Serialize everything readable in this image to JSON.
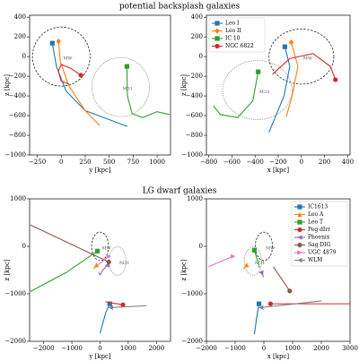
{
  "figure_titles": [
    "potential backsplash galaxies",
    "LG dwarf galaxies"
  ],
  "chart_data": [
    {
      "type": "line",
      "xlabel": "y [kpc]",
      "ylabel": "z [kpc]",
      "xlim": [
        -330,
        1140
      ],
      "ylim": [
        -1000,
        420
      ],
      "xticks": [
        {
          "value": -250,
          "label": "−250"
        },
        0,
        250,
        500,
        750,
        1000
      ],
      "yticks": [
        {
          "value": -1000,
          "label": "−1000"
        },
        {
          "value": -800,
          "label": "−800"
        },
        {
          "value": -600,
          "label": "−600"
        },
        {
          "value": -400,
          "label": "−400"
        },
        {
          "value": -200,
          "label": "−200"
        },
        0,
        200,
        400
      ],
      "circles": [
        {
          "label": "MW",
          "x": 0,
          "y": 0,
          "r": 300
        },
        {
          "label": "M31",
          "x": 620,
          "y": -310,
          "r": 300
        }
      ],
      "series": [
        {
          "name": "Leo I",
          "color": "#1f77b4",
          "marker": "s",
          "x": [
            -93,
            -50,
            50,
            250,
            690
          ],
          "values": [
            136,
            -100,
            -350,
            -550,
            -710
          ]
        },
        {
          "name": "Leo II",
          "color": "#ff7f0e",
          "marker": "D",
          "x": [
            -28,
            -10,
            80,
            250,
            400
          ],
          "values": [
            155,
            -50,
            -300,
            -550,
            -700
          ]
        },
        {
          "name": "IC 10",
          "color": "#2ca02c",
          "marker": "s",
          "x": [
            685,
            690,
            740,
            850,
            1000,
            1130
          ],
          "values": [
            -100,
            -400,
            -580,
            -620,
            -560,
            -590
          ]
        },
        {
          "name": "NGC 6822",
          "color": "#d62728",
          "marker": "o",
          "x": [
            205,
            100,
            0,
            -30,
            0,
            80
          ],
          "values": [
            -190,
            -120,
            -80,
            -150,
            -250,
            -280
          ]
        }
      ]
    },
    {
      "type": "line",
      "xlabel": "x [kpc]",
      "ylabel": "z [kpc]",
      "xlim": [
        -820,
        420
      ],
      "ylim": [
        -1000,
        420
      ],
      "xticks": [
        {
          "value": -800,
          "label": "−800"
        },
        {
          "value": -600,
          "label": "−600"
        },
        {
          "value": -400,
          "label": "−400"
        },
        {
          "value": -200,
          "label": "−200"
        },
        0,
        200,
        400
      ],
      "yticks": [
        {
          "value": -1000,
          "label": "−1000"
        },
        {
          "value": -800,
          "label": "−800"
        },
        {
          "value": -600,
          "label": "−600"
        },
        {
          "value": -400,
          "label": "−400"
        },
        {
          "value": -200,
          "label": "−200"
        },
        0,
        200,
        400
      ],
      "legend": "upper left",
      "circles": [
        {
          "label": "MW",
          "x": 0,
          "y": 0,
          "r": 280
        },
        {
          "label": "M33",
          "x": -380,
          "y": -340,
          "r": 300
        }
      ],
      "series": [
        {
          "name": "Leo I",
          "color": "#1f77b4",
          "marker": "s",
          "x": [
            -143,
            -100,
            -150,
            -280
          ],
          "values": [
            100,
            -100,
            -400,
            -770
          ]
        },
        {
          "name": "Leo II",
          "color": "#ff7f0e",
          "marker": "D",
          "x": [
            -87,
            -30,
            -80,
            -130
          ],
          "values": [
            145,
            -100,
            -400,
            -610
          ]
        },
        {
          "name": "IC 10",
          "color": "#2ca02c",
          "marker": "s",
          "x": [
            -373,
            -420,
            -550,
            -700,
            -760
          ],
          "values": [
            -155,
            -450,
            -620,
            -590,
            -500
          ]
        },
        {
          "name": "NGC 6822",
          "color": "#d62728",
          "marker": "o",
          "x": [
            294,
            250,
            100,
            -100,
            -250
          ],
          "values": [
            -235,
            -100,
            30,
            -20,
            -180
          ]
        }
      ]
    },
    {
      "type": "line",
      "xlabel": "y [kpc]",
      "ylabel": "z [kpc]",
      "xlim": [
        -2500,
        2500
      ],
      "ylim": [
        -2000,
        1000
      ],
      "xticks": [
        {
          "value": -2000,
          "label": "−2000"
        },
        {
          "value": -1000,
          "label": "−1000"
        },
        0,
        1000,
        2000
      ],
      "yticks": [
        {
          "value": -2000,
          "label": "−2000"
        },
        {
          "value": -1000,
          "label": "−1000"
        },
        0,
        1000
      ],
      "circles": [
        {
          "label": "MW",
          "x": 0,
          "y": 0,
          "r": 300
        },
        {
          "label": "M31",
          "x": 620,
          "y": -310,
          "r": 300
        }
      ],
      "series": [
        {
          "name": "IC1613",
          "color": "#1f77b4",
          "marker": "s",
          "x": [
            344,
            200,
            0
          ],
          "values": [
            -1210,
            -1400,
            -1830
          ]
        },
        {
          "name": "Leo A",
          "color": "#ff7f0e",
          "marker": "^",
          "x": [
            -125,
            -220
          ],
          "values": [
            -390,
            -480
          ]
        },
        {
          "name": "Leo T",
          "color": "#2ca02c",
          "marker": "s",
          "x": [
            -95,
            -1200,
            -2470
          ],
          "values": [
            -100,
            -550,
            -950
          ]
        },
        {
          "name": "Peg dIrr",
          "color": "#d62728",
          "marker": "o",
          "x": [
            810,
            190
          ],
          "values": [
            -1230,
            -1170
          ]
        },
        {
          "name": "Phoenix",
          "color": "#9467bd",
          "marker": "<",
          "x": [
            250,
            100,
            0,
            -50
          ],
          "values": [
            -400,
            -500,
            -600,
            -550
          ]
        },
        {
          "name": "Sag DIG",
          "color": "#8c564b",
          "marker": "o",
          "x": [
            310,
            -2470
          ],
          "values": [
            -330,
            450
          ]
        },
        {
          "name": "UGC 4879",
          "color": "#e377c2",
          "marker": ">",
          "x": [
            310,
            -60
          ],
          "values": [
            -210,
            -390
          ]
        },
        {
          "name": "WLM",
          "color": "#7f7f7f",
          "marker": "<",
          "x": [
            375,
            1650
          ],
          "values": [
            -1290,
            -1250
          ]
        }
      ]
    },
    {
      "type": "line",
      "xlabel": "x [kpc]",
      "ylabel": "z [kpc]",
      "xlim": [
        -2000,
        3000
      ],
      "ylim": [
        -2000,
        1000
      ],
      "xticks": [
        {
          "value": -2000,
          "label": "−2000"
        },
        {
          "value": -1000,
          "label": "−1000"
        },
        0,
        1000,
        2000,
        3000
      ],
      "yticks": [
        {
          "value": -2000,
          "label": "−2000"
        },
        {
          "value": -1000,
          "label": "−1000"
        },
        0,
        1000
      ],
      "legend": "upper right",
      "circles": [
        {
          "label": "MW",
          "x": 0,
          "y": 0,
          "r": 300
        },
        {
          "label": "M31",
          "x": -380,
          "y": -310,
          "r": 300
        }
      ],
      "series": [
        {
          "name": "IC1613",
          "color": "#1f77b4",
          "marker": "s",
          "x": [
            -170,
            -250,
            -330
          ],
          "values": [
            -1210,
            -1500,
            -1850
          ]
        },
        {
          "name": "Leo A",
          "color": "#ff7f0e",
          "marker": "^",
          "x": [
            -600,
            -700
          ],
          "values": [
            -390,
            -470
          ]
        },
        {
          "name": "Leo T",
          "color": "#2ca02c",
          "marker": "s",
          "x": [
            -330,
            -150
          ],
          "values": [
            -80,
            -450
          ]
        },
        {
          "name": "Peg dIrr",
          "color": "#d62728",
          "marker": "o",
          "x": [
            230,
            3000
          ],
          "values": [
            -1210,
            -1210
          ]
        },
        {
          "name": "Phoenix",
          "color": "#9467bd",
          "marker": "<",
          "x": [
            -100,
            0
          ],
          "values": [
            -550,
            -650
          ]
        },
        {
          "name": "Sag DIG",
          "color": "#8c564b",
          "marker": "o",
          "x": [
            900,
            330
          ],
          "values": [
            -940,
            -430
          ]
        },
        {
          "name": "UGC 4879",
          "color": "#e377c2",
          "marker": ">",
          "x": [
            -1070,
            -1930
          ],
          "values": [
            -210,
            -430
          ]
        },
        {
          "name": "WLM",
          "color": "#7f7f7f",
          "marker": "<",
          "x": [
            -100,
            2000
          ],
          "values": [
            -1290,
            -1150
          ]
        }
      ]
    }
  ]
}
